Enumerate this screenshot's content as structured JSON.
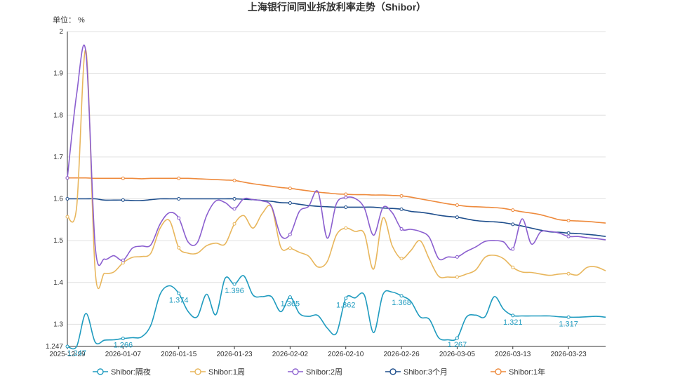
{
  "chart_data": {
    "type": "line",
    "title": "上海银行间同业拆放利率走势（Shibor）",
    "unit_label": "单位： %",
    "ylim": [
      1.247,
      2
    ],
    "y_ticks": [
      "1.247",
      "1.3",
      "1.4",
      "1.5",
      "1.6",
      "1.7",
      "1.8",
      "1.9",
      "2"
    ],
    "grid": true,
    "legend_position": "bottom-center",
    "x_dates": [
      "2025-12-29",
      "2025-12-30",
      "2025-12-31",
      "2026-01-04",
      "2026-01-05",
      "2026-01-06",
      "2026-01-07",
      "2026-01-08",
      "2026-01-09",
      "2026-01-12",
      "2026-01-13",
      "2026-01-14",
      "2026-01-15",
      "2026-01-16",
      "2026-01-19",
      "2026-01-20",
      "2026-01-21",
      "2026-01-22",
      "2026-01-23",
      "2026-01-26",
      "2026-01-27",
      "2026-01-28",
      "2026-01-29",
      "2026-01-30",
      "2026-02-02",
      "2026-02-03",
      "2026-02-04",
      "2026-02-05",
      "2026-02-06",
      "2026-02-09",
      "2026-02-10",
      "2026-02-11",
      "2026-02-12",
      "2026-02-13",
      "2026-02-24",
      "2026-02-25",
      "2026-02-26",
      "2026-02-27",
      "2026-03-02",
      "2026-03-03",
      "2026-03-04",
      "2026-03-05",
      "2026-03-06",
      "2026-03-09",
      "2026-03-10",
      "2026-03-11",
      "2026-03-12",
      "2026-03-13",
      "2026-03-16",
      "2026-03-17",
      "2026-03-18",
      "2026-03-19",
      "2026-03-20",
      "2026-03-23",
      "2026-03-24",
      "2026-03-25",
      "2026-03-26",
      "2026-03-27",
      "2026-03-30"
    ],
    "x_tick_labels": [
      "2025-12-29",
      "2026-01-07",
      "2026-01-15",
      "2026-01-23",
      "2026-02-02",
      "2026-02-10",
      "2026-02-26",
      "2026-03-05",
      "2026-03-13",
      "2026-03-23"
    ],
    "x_tick_indices": [
      0,
      6,
      12,
      18,
      24,
      30,
      36,
      42,
      48,
      54
    ],
    "series": [
      {
        "name": "Shibor:隔夜",
        "color": "#1f9bbf",
        "values": [
          1.247,
          1.247,
          1.326,
          1.257,
          1.262,
          1.263,
          1.266,
          1.268,
          1.27,
          1.298,
          1.372,
          1.392,
          1.374,
          1.331,
          1.318,
          1.372,
          1.323,
          1.41,
          1.396,
          1.416,
          1.37,
          1.366,
          1.366,
          1.33,
          1.365,
          1.326,
          1.319,
          1.321,
          1.291,
          1.279,
          1.362,
          1.363,
          1.37,
          1.28,
          1.371,
          1.377,
          1.368,
          1.355,
          1.318,
          1.312,
          1.268,
          1.263,
          1.267,
          1.317,
          1.322,
          1.318,
          1.366,
          1.336,
          1.321,
          1.32,
          1.32,
          1.32,
          1.32,
          1.318,
          1.317,
          1.317,
          1.318,
          1.319,
          1.317
        ],
        "labels": [
          {
            "i": 1,
            "text": "1.247"
          },
          {
            "i": 6,
            "text": "1.266"
          },
          {
            "i": 12,
            "text": "1.374"
          },
          {
            "i": 18,
            "text": "1.396"
          },
          {
            "i": 24,
            "text": "1.365"
          },
          {
            "i": 30,
            "text": "1.362"
          },
          {
            "i": 36,
            "text": "1.368"
          },
          {
            "i": 42,
            "text": "1.267"
          },
          {
            "i": 48,
            "text": "1.321"
          },
          {
            "i": 54,
            "text": "1.317"
          }
        ]
      },
      {
        "name": "Shibor:1周",
        "color": "#e8b65c",
        "values": [
          1.557,
          1.58,
          1.955,
          1.426,
          1.422,
          1.425,
          1.447,
          1.46,
          1.462,
          1.47,
          1.53,
          1.548,
          1.483,
          1.47,
          1.47,
          1.488,
          1.494,
          1.492,
          1.54,
          1.56,
          1.53,
          1.565,
          1.58,
          1.484,
          1.482,
          1.472,
          1.463,
          1.437,
          1.45,
          1.514,
          1.53,
          1.522,
          1.517,
          1.432,
          1.554,
          1.488,
          1.457,
          1.476,
          1.5,
          1.456,
          1.415,
          1.413,
          1.413,
          1.42,
          1.43,
          1.46,
          1.465,
          1.457,
          1.436,
          1.425,
          1.424,
          1.42,
          1.417,
          1.42,
          1.421,
          1.418,
          1.436,
          1.437,
          1.428
        ]
      },
      {
        "name": "Shibor:2周",
        "color": "#8b5fcf",
        "values": [
          1.65,
          1.85,
          1.95,
          1.486,
          1.456,
          1.464,
          1.453,
          1.482,
          1.487,
          1.49,
          1.54,
          1.567,
          1.554,
          1.497,
          1.495,
          1.56,
          1.595,
          1.591,
          1.576,
          1.6,
          1.598,
          1.595,
          1.582,
          1.512,
          1.515,
          1.57,
          1.582,
          1.617,
          1.506,
          1.589,
          1.603,
          1.601,
          1.578,
          1.513,
          1.579,
          1.567,
          1.528,
          1.527,
          1.522,
          1.508,
          1.457,
          1.461,
          1.461,
          1.474,
          1.485,
          1.498,
          1.5,
          1.497,
          1.48,
          1.552,
          1.492,
          1.521,
          1.522,
          1.518,
          1.51,
          1.51,
          1.507,
          1.505,
          1.502
        ]
      },
      {
        "name": "Shibor:3个月",
        "color": "#1e4e8c",
        "values": [
          1.6,
          1.6,
          1.6,
          1.6,
          1.597,
          1.597,
          1.597,
          1.596,
          1.596,
          1.598,
          1.6,
          1.6,
          1.6,
          1.6,
          1.6,
          1.6,
          1.6,
          1.6,
          1.6,
          1.599,
          1.598,
          1.596,
          1.594,
          1.591,
          1.59,
          1.587,
          1.584,
          1.582,
          1.581,
          1.58,
          1.58,
          1.58,
          1.58,
          1.58,
          1.578,
          1.577,
          1.575,
          1.57,
          1.568,
          1.565,
          1.561,
          1.558,
          1.556,
          1.552,
          1.548,
          1.546,
          1.545,
          1.543,
          1.539,
          1.535,
          1.53,
          1.525,
          1.521,
          1.52,
          1.518,
          1.517,
          1.515,
          1.513,
          1.51
        ]
      },
      {
        "name": "Shibor:1年",
        "color": "#ee8a3c",
        "values": [
          1.65,
          1.65,
          1.65,
          1.649,
          1.649,
          1.649,
          1.649,
          1.649,
          1.648,
          1.649,
          1.649,
          1.649,
          1.649,
          1.649,
          1.648,
          1.647,
          1.646,
          1.645,
          1.644,
          1.64,
          1.636,
          1.633,
          1.63,
          1.627,
          1.625,
          1.622,
          1.619,
          1.616,
          1.614,
          1.612,
          1.611,
          1.61,
          1.61,
          1.609,
          1.609,
          1.608,
          1.607,
          1.604,
          1.6,
          1.596,
          1.592,
          1.588,
          1.585,
          1.582,
          1.581,
          1.58,
          1.579,
          1.577,
          1.573,
          1.569,
          1.566,
          1.562,
          1.556,
          1.55,
          1.548,
          1.547,
          1.546,
          1.544,
          1.542
        ]
      }
    ]
  }
}
